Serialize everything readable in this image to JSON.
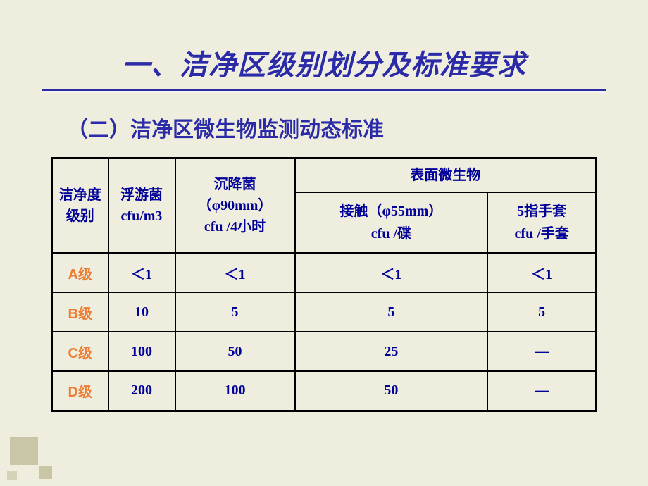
{
  "title": "一、洁净区级别划分及标准要求",
  "subtitle": "（二）洁净区微生物监测动态标准",
  "table": {
    "headers": {
      "col1": "洁净度\n级别",
      "col2": "浮游菌\ncfu/m3",
      "col3_top": "沉降菌\n（φ90mm）",
      "col3_bot": "cfu /4小时",
      "surface_title": "表面微生物",
      "col4": "接触（φ55mm）\ncfu /碟",
      "col5": "5指手套\ncfu /手套"
    },
    "rows": [
      {
        "label": "A级",
        "c2": "＜1",
        "c3": "＜1",
        "c4": "＜1",
        "c5": "＜1"
      },
      {
        "label": "B级",
        "c2": "10",
        "c3": "5",
        "c4": "5",
        "c5": "5"
      },
      {
        "label": "C级",
        "c2": "100",
        "c3": "50",
        "c4": "25",
        "c5": "—"
      },
      {
        "label": "D级",
        "c2": "200",
        "c3": "100",
        "c4": "50",
        "c5": "—"
      }
    ]
  },
  "styling": {
    "background_color": "#efedde",
    "title_color": "#2b2ba8",
    "header_text_color": "#000099",
    "row_label_color": "#ed7d31",
    "value_color": "#000099",
    "border_color": "#000000",
    "title_fontsize": 40,
    "subtitle_fontsize": 30,
    "cell_fontsize": 20
  }
}
